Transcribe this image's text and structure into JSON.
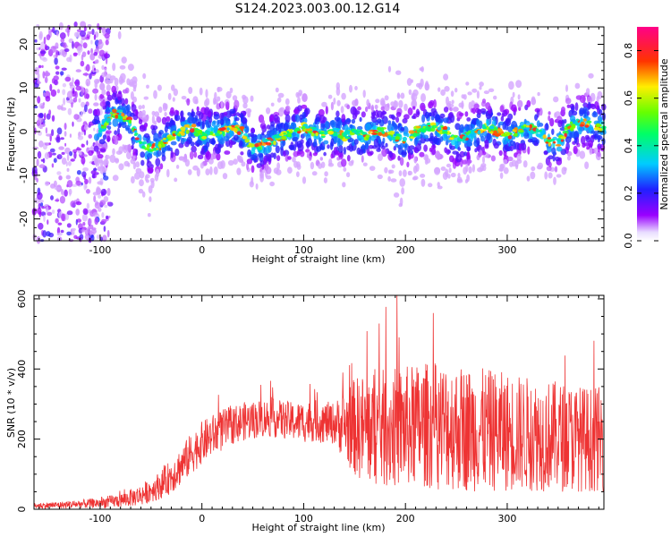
{
  "title": "S124.2023.003.00.12.G14",
  "chart_data": [
    {
      "type": "heatmap",
      "xlabel": "Height of straight line (km)",
      "ylabel": "Frequency (Hz)",
      "xlim": [
        -165,
        395
      ],
      "ylim": [
        -25,
        24
      ],
      "xticks": [
        -100,
        0,
        100,
        200,
        300
      ],
      "yticks": [
        -20,
        -10,
        0,
        10,
        20
      ],
      "colorbar": {
        "label": "Normalized spectral amplitude",
        "range": [
          0.0,
          0.9
        ],
        "ticks": [
          "0.0",
          "0.2",
          "0.4",
          "0.6",
          "0.8"
        ],
        "colormap": "rainbow (purple → blue → cyan → green → yellow → red → magenta)"
      },
      "ridge": {
        "x": [
          -100,
          -90,
          -80,
          -70,
          -60,
          -50,
          -40,
          -30,
          -20,
          -10,
          0,
          10,
          20,
          30,
          40,
          50,
          60,
          70,
          80,
          90,
          100,
          110,
          120,
          130,
          140,
          150,
          160,
          170,
          180,
          190,
          200,
          210,
          220,
          230,
          240,
          250,
          260,
          270,
          280,
          290,
          300,
          310,
          320,
          330,
          340,
          350,
          360,
          370,
          380,
          390
        ],
        "y": [
          0,
          4,
          4,
          2,
          -3,
          -4,
          -3,
          -1,
          0,
          1,
          -1,
          0,
          0,
          1,
          0,
          -4,
          -3,
          -2,
          -1,
          0,
          1,
          0,
          -1,
          0,
          -1,
          0,
          -1,
          0,
          0,
          -1,
          -2,
          0,
          1,
          1,
          0,
          -2,
          -1,
          0,
          1,
          0,
          -1,
          0,
          1,
          0,
          -2,
          -3,
          1,
          2,
          2,
          1
        ]
      }
    },
    {
      "type": "line",
      "xlabel": "Height of straight line (km)",
      "ylabel": "SNR (10 * v/v)",
      "xlim": [
        -165,
        395
      ],
      "ylim": [
        0,
        610
      ],
      "xticks": [
        -100,
        0,
        100,
        200,
        300
      ],
      "yticks": [
        0,
        200,
        400,
        600
      ],
      "series": [
        {
          "color": "#ee3333",
          "x": [
            -165,
            -140,
            -120,
            -100,
            -80,
            -60,
            -50,
            -40,
            -30,
            -20,
            -10,
            0,
            10,
            20,
            30,
            40,
            50,
            60,
            70,
            80,
            90,
            100,
            110,
            120,
            130,
            140,
            150,
            160,
            180,
            200,
            220,
            240,
            260,
            280,
            300,
            320,
            340,
            360,
            380,
            395
          ],
          "mean": [
            10,
            12,
            15,
            18,
            25,
            40,
            55,
            70,
            95,
            125,
            160,
            190,
            210,
            225,
            240,
            250,
            255,
            260,
            260,
            255,
            250,
            250,
            252,
            248,
            245,
            240,
            235,
            230,
            230,
            235,
            240,
            238,
            230,
            225,
            220,
            215,
            210,
            205,
            200,
            200
          ],
          "spread": [
            8,
            10,
            12,
            15,
            20,
            30,
            35,
            40,
            50,
            55,
            60,
            60,
            60,
            60,
            55,
            55,
            55,
            55,
            55,
            55,
            55,
            60,
            60,
            60,
            60,
            100,
            140,
            160,
            170,
            175,
            180,
            185,
            180,
            175,
            170,
            165,
            160,
            155,
            150,
            150
          ]
        }
      ]
    }
  ]
}
